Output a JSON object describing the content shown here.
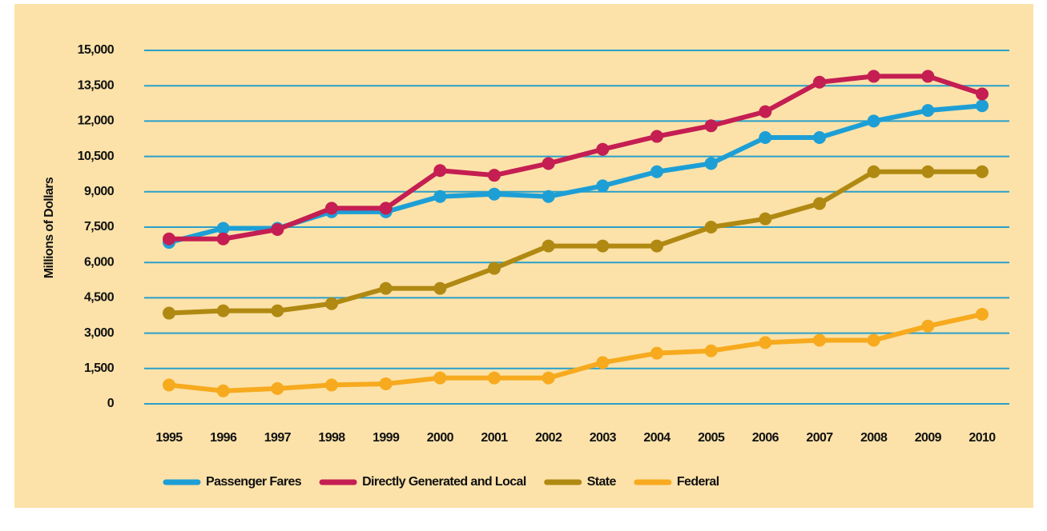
{
  "chart_data": {
    "type": "line",
    "y_label": "Millions of Dollars",
    "categories": [
      "1995",
      "1996",
      "1997",
      "1998",
      "1999",
      "2000",
      "2001",
      "2002",
      "2003",
      "2004",
      "2005",
      "2006",
      "2007",
      "2008",
      "2009",
      "2010"
    ],
    "series": [
      {
        "name": "Passenger Fares",
        "color": "#1d9fd6",
        "values": [
          6850,
          7450,
          7450,
          8150,
          8150,
          8800,
          8900,
          8800,
          9250,
          9850,
          10200,
          11300,
          11300,
          12000,
          12450,
          12650
        ]
      },
      {
        "name": "Directly Generated and Local",
        "color": "#c41e52",
        "values": [
          7000,
          7000,
          7400,
          8300,
          8300,
          9900,
          9700,
          10200,
          10800,
          11350,
          11800,
          12400,
          13650,
          13900,
          13900,
          13150
        ]
      },
      {
        "name": "State",
        "color": "#b08912",
        "values": [
          3850,
          3950,
          3950,
          4250,
          4900,
          4900,
          5750,
          6700,
          6700,
          6700,
          7500,
          7850,
          8500,
          9850,
          9850,
          9850
        ]
      },
      {
        "name": "Federal",
        "color": "#f7aa1e",
        "values": [
          800,
          550,
          650,
          800,
          850,
          1100,
          1100,
          1100,
          1750,
          2150,
          2250,
          2600,
          2700,
          2700,
          3300,
          3800
        ]
      }
    ],
    "ylim": [
      0,
      15000
    ],
    "yticks": [
      0,
      {
        "value": 1500,
        "label": "1,500"
      },
      {
        "value": 3000,
        "label": "3,000"
      },
      {
        "value": 4500,
        "label": "4,500"
      },
      {
        "value": 6000,
        "label": "6,000"
      },
      {
        "value": 7500,
        "label": "7,500"
      },
      {
        "value": 9000,
        "label": "9,000"
      },
      {
        "value": 10500,
        "label": "10,500"
      },
      {
        "value": 12000,
        "label": "12,000"
      },
      {
        "value": 13500,
        "label": "13,500"
      },
      {
        "value": 15000,
        "label": "15,000"
      }
    ],
    "grid": true,
    "grid_color": "#2a9fc9",
    "legend": "bottom"
  }
}
